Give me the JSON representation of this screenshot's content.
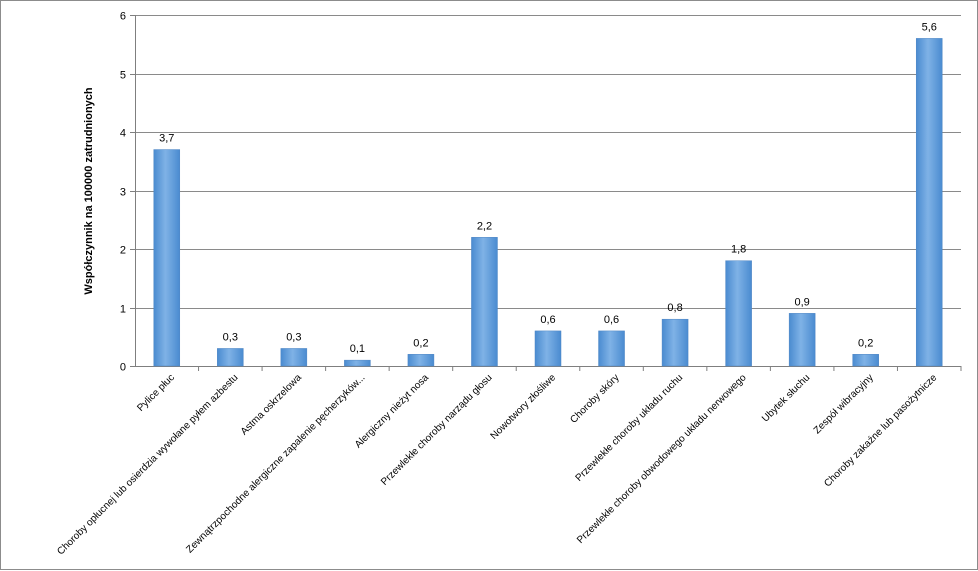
{
  "chart_data": {
    "type": "bar",
    "title": "",
    "xlabel": "",
    "ylabel": "Współczynnik na 100000 zatrudnionych",
    "ylim": [
      0,
      6
    ],
    "yticks": [
      0,
      1,
      2,
      3,
      4,
      5,
      6
    ],
    "grid": true,
    "legend": "none",
    "bar_color": "#5b9bd5",
    "categories": [
      "Pylice płuc",
      "Choroby opłucnej lub osierdzia wywołane pyłem azbestu",
      "Astma oskrzelowa",
      "Zewnątrzpochodne alergiczne zapalenie pęcherzyków...",
      "Alergiczny nieżyt nosa",
      "Przewlekłe choroby narządu głosu",
      "Nowotwory złośliwe",
      "Choroby skóry",
      "Przewlekłe choroby układu ruchu",
      "Przewlekłe choroby obwodowego układu nerwowego",
      "Ubytek słuchu",
      "Zespół wibracyjny",
      "Choroby zakaźne lub pasożytnicze"
    ],
    "values": [
      3.7,
      0.3,
      0.3,
      0.1,
      0.2,
      2.2,
      0.6,
      0.6,
      0.8,
      1.8,
      0.9,
      0.2,
      5.6
    ],
    "data_labels": [
      "3,7",
      "0,3",
      "0,3",
      "0,1",
      "0,2",
      "2,2",
      "0,6",
      "0,6",
      "0,8",
      "1,8",
      "0,9",
      "0,2",
      "5,6"
    ]
  }
}
